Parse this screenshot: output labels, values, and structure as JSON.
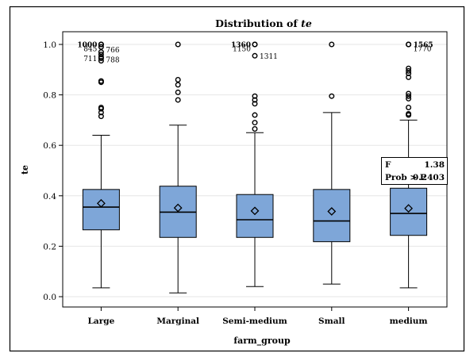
{
  "chart_data": {
    "type": "boxplot",
    "title_prefix": "Distribution of ",
    "title_var": "te",
    "xlabel": "farm_group",
    "ylabel": "te",
    "ylim": [
      0.0,
      1.0
    ],
    "yticks": [
      0.0,
      0.2,
      0.4,
      0.6,
      0.8,
      1.0
    ],
    "ytick_labels": [
      "0.0",
      "0.2",
      "0.4",
      "0.6",
      "0.8",
      "1.0"
    ],
    "grid": true,
    "box_color": "#7ea6d8",
    "categories": [
      "Large",
      "Marginal",
      "Semi-medium",
      "Small",
      "medium"
    ],
    "groups": [
      {
        "category": "Large",
        "whisker_low": 0.035,
        "q1": 0.265,
        "median": 0.355,
        "mean": 0.37,
        "q3": 0.425,
        "whisker_high": 0.64,
        "outliers": [
          0.715,
          0.73,
          0.745,
          0.75,
          0.85,
          0.855,
          0.935,
          0.945,
          0.95,
          0.96,
          0.97,
          0.99,
          1.0,
          1.0,
          1.0
        ],
        "labels": [
          {
            "text": "1000",
            "y": 1.0,
            "side": "left"
          },
          {
            "text": "845",
            "y": 0.985,
            "side": "left"
          },
          {
            "text": "766",
            "y": 0.98,
            "side": "right"
          },
          {
            "text": "711",
            "y": 0.945,
            "side": "left"
          },
          {
            "text": "788",
            "y": 0.94,
            "side": "right"
          }
        ]
      },
      {
        "category": "Marginal",
        "whisker_low": 0.015,
        "q1": 0.235,
        "median": 0.335,
        "mean": 0.352,
        "q3": 0.438,
        "whisker_high": 0.68,
        "outliers": [
          0.78,
          0.81,
          0.84,
          0.86,
          1.0
        ],
        "labels": []
      },
      {
        "category": "Semi-medium",
        "whisker_low": 0.04,
        "q1": 0.235,
        "median": 0.305,
        "mean": 0.34,
        "q3": 0.405,
        "whisker_high": 0.65,
        "outliers": [
          0.665,
          0.69,
          0.72,
          0.765,
          0.78,
          0.795,
          0.955,
          1.0,
          1.0
        ],
        "labels": [
          {
            "text": "1360",
            "y": 1.0,
            "side": "left"
          },
          {
            "text": "1150",
            "y": 0.985,
            "side": "left"
          },
          {
            "text": "1311",
            "y": 0.955,
            "side": "right"
          }
        ]
      },
      {
        "category": "Small",
        "whisker_low": 0.05,
        "q1": 0.218,
        "median": 0.3,
        "mean": 0.338,
        "q3": 0.425,
        "whisker_high": 0.73,
        "outliers": [
          0.795,
          1.0
        ],
        "labels": []
      },
      {
        "category": "medium",
        "whisker_low": 0.035,
        "q1": 0.243,
        "median": 0.33,
        "mean": 0.35,
        "q3": 0.43,
        "whisker_high": 0.7,
        "outliers": [
          0.72,
          0.725,
          0.75,
          0.785,
          0.795,
          0.805,
          0.87,
          0.885,
          0.895,
          0.905,
          1.0,
          1.0
        ],
        "labels": [
          {
            "text": "1565",
            "y": 1.0,
            "side": "right"
          },
          {
            "text": "1770",
            "y": 0.985,
            "side": "right"
          }
        ]
      }
    ],
    "inset": {
      "rows": [
        {
          "key": "F",
          "value": "1.38"
        },
        {
          "key": "Prob > F",
          "value": "0.2403"
        }
      ]
    }
  }
}
